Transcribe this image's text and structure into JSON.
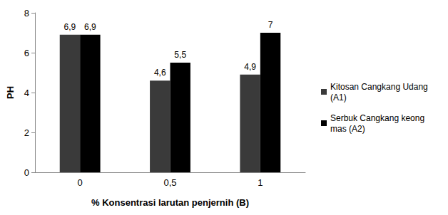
{
  "chart_data": {
    "type": "bar",
    "x_label": "% Konsentrasi larutan penjernih (B)",
    "y_label": "PH",
    "categories": [
      "0",
      "0,5",
      "1"
    ],
    "series": [
      {
        "name": "Kitosan Cangkang Udang (A1)",
        "color": "#3a3a3a",
        "values": [
          6.9,
          4.6,
          4.9
        ],
        "value_labels": [
          "6,9",
          "4,6",
          "4,9"
        ]
      },
      {
        "name": "Serbuk Cangkang keong mas (A2)",
        "color": "#000000",
        "values": [
          6.9,
          5.5,
          7
        ],
        "value_labels": [
          "6,9",
          "5,5",
          "7"
        ]
      }
    ],
    "ylim": [
      0,
      8
    ],
    "yticks": [
      0,
      2,
      4,
      6,
      8
    ],
    "grid": false,
    "legend": "right",
    "data_labels": true
  }
}
